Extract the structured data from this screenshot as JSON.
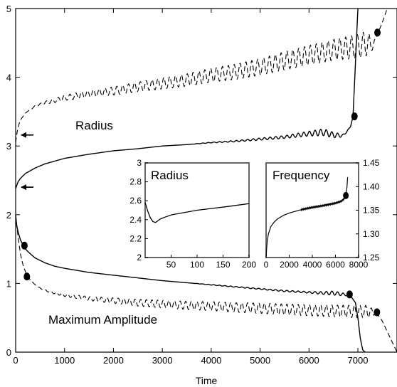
{
  "chart_data": [
    {
      "type": "line",
      "title": "",
      "xlabel": "Time",
      "ylabel": "",
      "xlim": [
        0,
        7800
      ],
      "ylim": [
        0,
        5
      ],
      "x_ticks": [
        0,
        1000,
        2000,
        3000,
        4000,
        5000,
        6000,
        7000
      ],
      "y_ticks": [
        0,
        1,
        2,
        3,
        4,
        5
      ],
      "annotations": [
        "Radius",
        "Maximum Amplitude"
      ],
      "series": [
        {
          "style": "solid",
          "group": "radius",
          "x": [
            0,
            50,
            100,
            200,
            400,
            600,
            800,
            1000,
            1500,
            2000,
            2500,
            3000,
            3500,
            4000,
            4500,
            5000,
            5500,
            6000,
            6300,
            6500,
            6700,
            6850,
            6900,
            6950,
            7000,
            7050
          ],
          "y": [
            2.38,
            2.48,
            2.53,
            2.6,
            2.68,
            2.74,
            2.78,
            2.82,
            2.88,
            2.93,
            2.96,
            3.0,
            3.02,
            3.05,
            3.07,
            3.1,
            3.13,
            3.18,
            3.2,
            3.16,
            3.15,
            3.28,
            3.43,
            4.2,
            5.0,
            5.3
          ],
          "wiggle_amp": [
            0,
            0,
            0,
            0,
            0,
            0,
            0,
            0,
            0,
            0,
            0,
            0,
            0,
            0.005,
            0.01,
            0.015,
            0.02,
            0.035,
            0.05,
            0.04,
            0.02,
            0,
            0,
            0,
            0,
            0
          ],
          "wiggle_period": 115
        },
        {
          "style": "dashed",
          "group": "radius",
          "x": [
            0,
            30,
            60,
            100,
            200,
            400,
            600,
            800,
            1000,
            1500,
            2000,
            2500,
            3000,
            3500,
            4000,
            4500,
            5000,
            5500,
            6000,
            6500,
            7000,
            7200,
            7300,
            7400,
            7500,
            7600,
            7800
          ],
          "y": [
            3.05,
            3.2,
            3.3,
            3.38,
            3.48,
            3.58,
            3.63,
            3.66,
            3.7,
            3.76,
            3.8,
            3.86,
            3.91,
            3.96,
            4.03,
            4.08,
            4.15,
            4.24,
            4.32,
            4.4,
            4.45,
            4.5,
            4.45,
            4.62,
            4.8,
            5.0,
            5.2
          ],
          "wiggle_amp": [
            0,
            0,
            0,
            0,
            0,
            0.01,
            0.02,
            0.03,
            0.04,
            0.05,
            0.06,
            0.07,
            0.08,
            0.09,
            0.1,
            0.11,
            0.12,
            0.13,
            0.14,
            0.15,
            0.17,
            0.18,
            0.05,
            0.0,
            0,
            0,
            0
          ],
          "wiggle_period": 120
        },
        {
          "style": "solid",
          "group": "amplitude",
          "x": [
            0,
            20,
            50,
            100,
            150,
            200,
            300,
            400,
            600,
            800,
            1000,
            1500,
            2000,
            2500,
            3000,
            3500,
            4000,
            4500,
            5000,
            5500,
            6000,
            6300,
            6500,
            6700,
            6850,
            6950,
            7000,
            7050,
            7100,
            7150
          ],
          "y": [
            2.0,
            1.85,
            1.75,
            1.63,
            1.56,
            1.5,
            1.43,
            1.37,
            1.3,
            1.25,
            1.22,
            1.16,
            1.12,
            1.08,
            1.04,
            1.01,
            0.98,
            0.95,
            0.92,
            0.89,
            0.87,
            0.86,
            0.86,
            0.84,
            0.82,
            0.72,
            0.5,
            0.2,
            0.03,
            0.0
          ],
          "wiggle_amp": [
            0,
            0,
            0,
            0,
            0,
            0,
            0,
            0,
            0,
            0,
            0,
            0,
            0,
            0,
            0,
            0,
            0.004,
            0.006,
            0.008,
            0.01,
            0.012,
            0.02,
            0.03,
            0.02,
            0,
            0,
            0,
            0,
            0,
            0
          ],
          "wiggle_period": 115
        },
        {
          "style": "dashed",
          "group": "amplitude",
          "x": [
            0,
            30,
            60,
            100,
            150,
            200,
            250,
            300,
            400,
            500,
            600,
            800,
            1000,
            1500,
            2000,
            2500,
            3000,
            3500,
            4000,
            4500,
            5000,
            5500,
            6000,
            6500,
            7000,
            7200,
            7300,
            7400,
            7500,
            7600,
            7800
          ],
          "y": [
            2.0,
            1.8,
            1.62,
            1.42,
            1.27,
            1.17,
            1.1,
            1.05,
            0.98,
            0.93,
            0.9,
            0.86,
            0.83,
            0.78,
            0.75,
            0.72,
            0.7,
            0.68,
            0.67,
            0.65,
            0.64,
            0.62,
            0.61,
            0.6,
            0.59,
            0.59,
            0.58,
            0.57,
            0.45,
            0.3,
            0.0
          ],
          "wiggle_amp": [
            0,
            0,
            0,
            0,
            0,
            0,
            0,
            0,
            0,
            0.005,
            0.01,
            0.015,
            0.02,
            0.03,
            0.04,
            0.05,
            0.055,
            0.06,
            0.065,
            0.07,
            0.075,
            0.08,
            0.08,
            0.085,
            0.09,
            0.09,
            0.05,
            0.02,
            0,
            0,
            0
          ],
          "wiggle_period": 115
        }
      ],
      "markers": [
        {
          "x": 6930,
          "y": 3.43
        },
        {
          "x": 7400,
          "y": 4.65
        },
        {
          "x": 180,
          "y": 1.55
        },
        {
          "x": 230,
          "y": 1.1
        },
        {
          "x": 6830,
          "y": 0.84
        },
        {
          "x": 7390,
          "y": 0.58
        }
      ],
      "arrows": [
        {
          "y": 3.16
        },
        {
          "y": 2.4
        }
      ]
    },
    {
      "type": "line",
      "title": "Radius",
      "xlim": [
        0,
        200
      ],
      "ylim": [
        2,
        3
      ],
      "x_ticks": [
        50,
        100,
        150,
        200
      ],
      "y_ticks": [
        2,
        2.2,
        2.4,
        2.6,
        2.8,
        3
      ],
      "series": [
        {
          "x": [
            0,
            5,
            10,
            15,
            20,
            25,
            30,
            40,
            50,
            70,
            100,
            130,
            160,
            200
          ],
          "y": [
            2.58,
            2.49,
            2.42,
            2.38,
            2.37,
            2.39,
            2.41,
            2.43,
            2.45,
            2.47,
            2.5,
            2.52,
            2.54,
            2.57
          ]
        }
      ]
    },
    {
      "type": "line",
      "title": "Frequency",
      "xlim": [
        0,
        8000
      ],
      "ylim": [
        1.25,
        1.45
      ],
      "x_ticks": [
        0,
        2000,
        4000,
        6000,
        8000
      ],
      "y_ticks": [
        1.25,
        1.3,
        1.35,
        1.4,
        1.45
      ],
      "series": [
        {
          "x": [
            0,
            50,
            100,
            200,
            400,
            700,
            1000,
            1500,
            2000,
            3000,
            4000,
            5000,
            6000,
            6500,
            6800,
            6900,
            7000,
            7050
          ],
          "y": [
            1.25,
            1.27,
            1.285,
            1.3,
            1.315,
            1.325,
            1.332,
            1.339,
            1.344,
            1.351,
            1.356,
            1.36,
            1.365,
            1.369,
            1.375,
            1.38,
            1.4,
            1.42
          ]
        }
      ],
      "markers": [
        {
          "x": 6900,
          "y": 1.381
        }
      ]
    }
  ]
}
